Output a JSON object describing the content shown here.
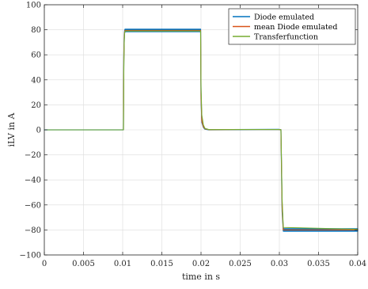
{
  "chart_data": {
    "type": "line",
    "title": "",
    "xlabel": "time in s",
    "ylabel": "iLV in A",
    "xlim": [
      0,
      0.04
    ],
    "ylim": [
      -100,
      100
    ],
    "xticks": [
      0,
      0.005,
      0.01,
      0.015,
      0.02,
      0.025,
      0.03,
      0.035,
      0.04
    ],
    "xtick_labels": [
      "0",
      "0.005",
      "0.01",
      "0.015",
      "0.02",
      "0.025",
      "0.03",
      "0.035",
      "0.04"
    ],
    "yticks": [
      -100,
      -80,
      -60,
      -40,
      -20,
      0,
      20,
      40,
      60,
      80,
      100
    ],
    "ytick_labels": [
      "−100",
      "−80",
      "−60",
      "−40",
      "−20",
      "0",
      "20",
      "40",
      "60",
      "80",
      "100"
    ],
    "grid": true,
    "legend_position": "top-right",
    "series": [
      {
        "name": "Diode emulated",
        "color": "#0072BD",
        "band": true,
        "x": [
          0,
          0.0101,
          0.01015,
          0.0102,
          0.01025,
          0.0103,
          0.0199,
          0.01995,
          0.02,
          0.0201,
          0.0203,
          0.0205,
          0.021,
          0.0299,
          0.0302,
          0.03035,
          0.0305,
          0.04
        ],
        "upper": [
          0,
          0,
          60,
          76,
          79.5,
          80.5,
          80.5,
          80.5,
          30,
          8,
          3,
          1,
          0.2,
          0.4,
          0.2,
          -60,
          -79,
          -79
        ],
        "lower": [
          0,
          0,
          55,
          72,
          77.5,
          78.5,
          78.5,
          78.5,
          25,
          6,
          2,
          0.5,
          0,
          0.3,
          0,
          -65,
          -81,
          -81
        ]
      },
      {
        "name": "mean Diode emulated",
        "color": "#D95319",
        "x": [
          0,
          0.0101,
          0.01015,
          0.0102,
          0.01025,
          0.0103,
          0.0199,
          0.01995,
          0.02,
          0.0201,
          0.0203,
          0.0205,
          0.021,
          0.025,
          0.0299,
          0.0302,
          0.03035,
          0.0305,
          0.04
        ],
        "y": [
          0,
          0,
          58,
          74,
          78.5,
          79.5,
          79.5,
          79.5,
          27,
          7,
          2.5,
          0.8,
          0.1,
          0.3,
          0.3,
          0.1,
          -62,
          -80,
          -80
        ]
      },
      {
        "name": "Transferfunction",
        "color": "#77AC30",
        "x": [
          0,
          0.0101,
          0.01015,
          0.0102,
          0.01025,
          0.0103,
          0.0199,
          0.01995,
          0.02,
          0.0201,
          0.0203,
          0.0205,
          0.021,
          0.025,
          0.0299,
          0.0302,
          0.03035,
          0.0305,
          0.04
        ],
        "y": [
          0,
          0,
          50,
          70,
          77,
          79,
          79,
          79,
          35,
          12,
          4,
          1.2,
          0.2,
          0.3,
          0.3,
          0.1,
          -55,
          -78,
          -79.5
        ]
      }
    ]
  }
}
